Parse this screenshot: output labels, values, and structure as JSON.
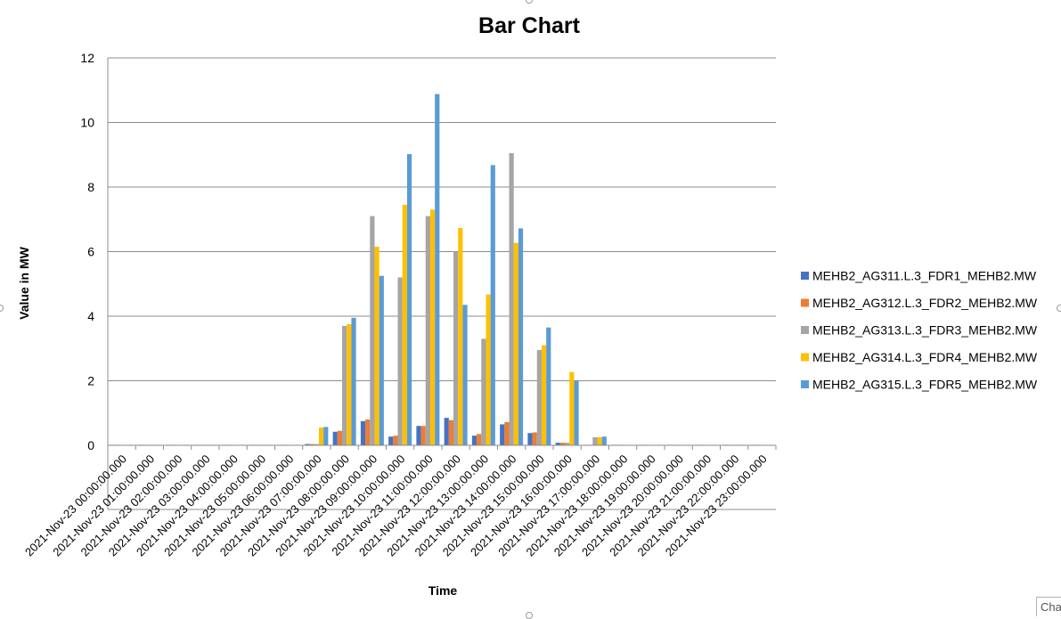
{
  "chart_data": {
    "type": "bar",
    "title": "Bar Chart",
    "xlabel": "Time",
    "ylabel": "Value in MW",
    "ylim": [
      -2,
      12
    ],
    "yticks": [
      0,
      2,
      4,
      6,
      8,
      10,
      12
    ],
    "grid": true,
    "legend_position": "right",
    "categories": [
      "2021-Nov-23 00:00:00.000",
      "2021-Nov-23 01:00:00.000",
      "2021-Nov-23 02:00:00.000",
      "2021-Nov-23 03:00:00.000",
      "2021-Nov-23 04:00:00.000",
      "2021-Nov-23 05:00:00.000",
      "2021-Nov-23 06:00:00.000",
      "2021-Nov-23 07:00:00.000",
      "2021-Nov-23 08:00:00.000",
      "2021-Nov-23 09:00:00.000",
      "2021-Nov-23 10:00:00.000",
      "2021-Nov-23 11:00:00.000",
      "2021-Nov-23 12:00:00.000",
      "2021-Nov-23 13:00:00.000",
      "2021-Nov-23 14:00:00.000",
      "2021-Nov-23 15:00:00.000",
      "2021-Nov-23 16:00:00.000",
      "2021-Nov-23 17:00:00.000",
      "2021-Nov-23 18:00:00.000",
      "2021-Nov-23 19:00:00.000",
      "2021-Nov-23 20:00:00.000",
      "2021-Nov-23 21:00:00.000",
      "2021-Nov-23 22:00:00.000",
      "2021-Nov-23 23:00:00.000"
    ],
    "series": [
      {
        "name": "MEHB2_AG311.L.3_FDR1_MEHB2.MW",
        "color": "#4472C4",
        "values": [
          0,
          0,
          0,
          0,
          0,
          0,
          0,
          0.04,
          0.42,
          0.75,
          0.27,
          0.6,
          0.85,
          0.3,
          0.65,
          0.38,
          0.08,
          0.01,
          0.01,
          0.01,
          0.01,
          0.01,
          0.01,
          0
        ]
      },
      {
        "name": "MEHB2_AG312.L.3_FDR2_MEHB2.MW",
        "color": "#ED7D31",
        "values": [
          0,
          0,
          0,
          0,
          0,
          0,
          0,
          0.04,
          0.45,
          0.8,
          0.3,
          0.6,
          0.78,
          0.35,
          0.72,
          0.4,
          0.08,
          0.01,
          0.01,
          0.01,
          0.01,
          0.01,
          0.01,
          0
        ]
      },
      {
        "name": "MEHB2_AG313.L.3_FDR3_MEHB2.MW",
        "color": "#A5A5A5",
        "values": [
          0,
          0,
          0,
          0.01,
          0.01,
          0,
          0,
          0.04,
          3.7,
          7.1,
          5.2,
          7.1,
          6.0,
          3.3,
          9.05,
          2.95,
          0.08,
          0.25,
          0.01,
          0.01,
          0.01,
          0.01,
          0.01,
          0.01
        ]
      },
      {
        "name": "MEHB2_AG314.L.3_FDR4_MEHB2.MW",
        "color": "#FFC000",
        "values": [
          0,
          0,
          0,
          0,
          0,
          0,
          0,
          0.55,
          3.75,
          6.15,
          7.45,
          7.3,
          6.73,
          4.67,
          6.27,
          3.1,
          2.27,
          0.25,
          0.01,
          0.01,
          0.01,
          0.01,
          0.02,
          0.01
        ]
      },
      {
        "name": "MEHB2_AG315.L.3_FDR5_MEHB2.MW",
        "color": "#5B9BD5",
        "values": [
          0,
          0,
          0.01,
          0.01,
          0.01,
          0,
          0,
          0.57,
          3.95,
          5.25,
          9.02,
          10.88,
          4.35,
          8.68,
          6.72,
          3.65,
          2.0,
          0.27,
          0.01,
          0.01,
          0.01,
          0.01,
          0.01,
          0.01
        ]
      }
    ]
  }
}
